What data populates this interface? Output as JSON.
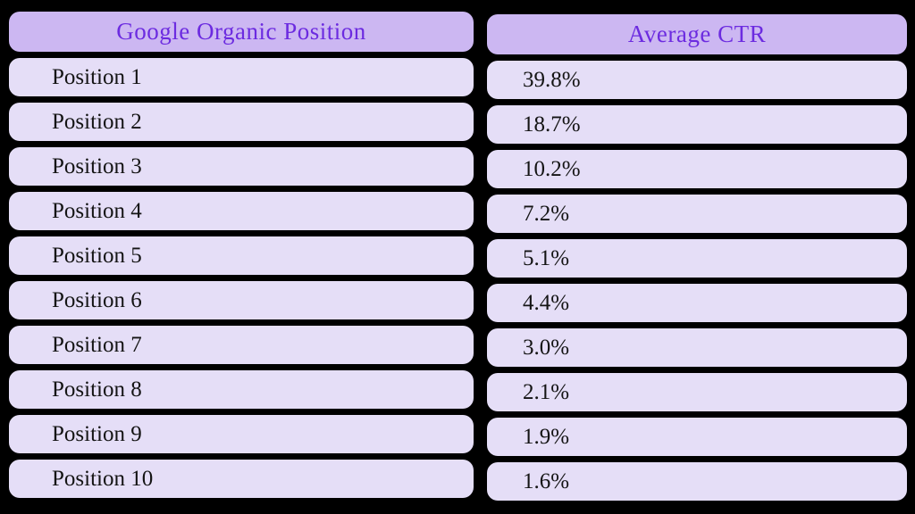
{
  "colors": {
    "background": "#000000",
    "header_bg": "#ccb7f2",
    "row_bg": "#e5def7",
    "header_text": "#6c2be0",
    "row_text": "#141414"
  },
  "table": {
    "headers": [
      {
        "label": "Google Organic Position"
      },
      {
        "label": "Average CTR"
      }
    ],
    "rows": [
      {
        "position": "Position 1",
        "ctr": "39.8%"
      },
      {
        "position": "Position 2",
        "ctr": "18.7%"
      },
      {
        "position": "Position 3",
        "ctr": "10.2%"
      },
      {
        "position": "Position 4",
        "ctr": "7.2%"
      },
      {
        "position": "Position 5",
        "ctr": "5.1%"
      },
      {
        "position": "Position 6",
        "ctr": "4.4%"
      },
      {
        "position": "Position 7",
        "ctr": "3.0%"
      },
      {
        "position": "Position 8",
        "ctr": "2.1%"
      },
      {
        "position": "Position 9",
        "ctr": "1.9%"
      },
      {
        "position": "Position 10",
        "ctr": "1.6%"
      }
    ]
  },
  "chart_data": {
    "type": "table",
    "columns": [
      "Google Organic Position",
      "Average CTR"
    ],
    "rows": [
      [
        "Position 1",
        "39.8%"
      ],
      [
        "Position 2",
        "18.7%"
      ],
      [
        "Position 3",
        "10.2%"
      ],
      [
        "Position 4",
        "7.2%"
      ],
      [
        "Position 5",
        "5.1%"
      ],
      [
        "Position 6",
        "4.4%"
      ],
      [
        "Position 7",
        "3.0%"
      ],
      [
        "Position 8",
        "2.1%"
      ],
      [
        "Position 9",
        "1.9%"
      ],
      [
        "Position 10",
        "1.6%"
      ]
    ],
    "positions": [
      1,
      2,
      3,
      4,
      5,
      6,
      7,
      8,
      9,
      10
    ],
    "ctr_percent": [
      39.8,
      18.7,
      10.2,
      7.2,
      5.1,
      4.4,
      3.0,
      2.1,
      1.9,
      1.6
    ]
  }
}
